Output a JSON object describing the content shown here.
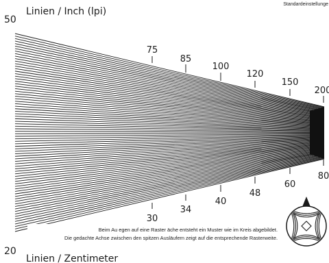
{
  "header": {
    "top_right_text": "Standardeinstellunge",
    "lpi_start": "50",
    "lpi_title": "Linien / Inch (lpi)",
    "lpcm_start": "20",
    "lpcm_title": "Linien / Zentimeter"
  },
  "lpi_ticks": [
    "75",
    "85",
    "100",
    "120",
    "150",
    "200"
  ],
  "lpcm_ticks": [
    "30",
    "34",
    "40",
    "48",
    "60",
    "80"
  ],
  "caption": {
    "line1": "Beim Au  egen auf eine Raster  äche entsteht ein Muster wie im Kreis abgebildet.",
    "line2": "Die gedachte Achse zwischen den spitzen Ausläufern zeigt auf die entsprechende Rasterweite."
  },
  "colors": {
    "ink": "#1a1a1a",
    "background": "#ffffff"
  },
  "icons": {
    "moire_indicator": "circle-moire-icon",
    "pointer": "arrow-up-icon"
  }
}
